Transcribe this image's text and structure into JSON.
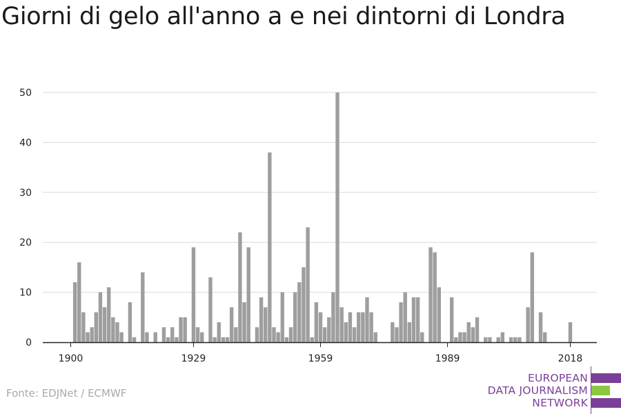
{
  "title": "Giorni di gelo all'anno a e nei dintorni di Londra",
  "source": "Fonte: EDJNet / ECMWF",
  "logo": {
    "lines": [
      "EUROPEAN",
      "DATA JOURNALISM",
      "NETWORK"
    ],
    "colors": [
      "#7b3f98",
      "#8dc63f",
      "#7b3f98"
    ]
  },
  "colors": {
    "bar": "#9e9e9e",
    "grid": "#d9d9d9",
    "axis": "#222222",
    "tick_text": "#222222"
  },
  "chart_data": {
    "type": "bar",
    "title": "Giorni di gelo all'anno a e nei dintorni di Londra",
    "xlabel": "",
    "ylabel": "",
    "ylim": [
      0,
      50
    ],
    "yticks": [
      0,
      10,
      20,
      30,
      40,
      50
    ],
    "xticks": [
      1900,
      1929,
      1959,
      1989,
      2018
    ],
    "xrange": [
      1900,
      2018
    ],
    "grid": true,
    "x": [
      1900,
      1901,
      1902,
      1903,
      1904,
      1905,
      1906,
      1907,
      1908,
      1909,
      1910,
      1911,
      1912,
      1913,
      1914,
      1915,
      1916,
      1917,
      1918,
      1919,
      1920,
      1921,
      1922,
      1923,
      1924,
      1925,
      1926,
      1927,
      1928,
      1929,
      1930,
      1931,
      1932,
      1933,
      1934,
      1935,
      1936,
      1937,
      1938,
      1939,
      1940,
      1941,
      1942,
      1943,
      1944,
      1945,
      1946,
      1947,
      1948,
      1949,
      1950,
      1951,
      1952,
      1953,
      1954,
      1955,
      1956,
      1957,
      1958,
      1959,
      1960,
      1961,
      1962,
      1963,
      1964,
      1965,
      1966,
      1967,
      1968,
      1969,
      1970,
      1971,
      1972,
      1973,
      1974,
      1975,
      1976,
      1977,
      1978,
      1979,
      1980,
      1981,
      1982,
      1983,
      1984,
      1985,
      1986,
      1987,
      1988,
      1989,
      1990,
      1991,
      1992,
      1993,
      1994,
      1995,
      1996,
      1997,
      1998,
      1999,
      2000,
      2001,
      2002,
      2003,
      2004,
      2005,
      2006,
      2007,
      2008,
      2009,
      2010,
      2011,
      2012,
      2013,
      2014,
      2015,
      2016,
      2017,
      2018
    ],
    "values": [
      0,
      12,
      16,
      6,
      2,
      3,
      6,
      10,
      7,
      11,
      5,
      4,
      2,
      0,
      8,
      1,
      0,
      14,
      2,
      0,
      2,
      0,
      3,
      1,
      3,
      1,
      5,
      5,
      0,
      19,
      3,
      2,
      0,
      13,
      1,
      4,
      1,
      1,
      7,
      3,
      22,
      8,
      19,
      0,
      3,
      9,
      7,
      38,
      3,
      2,
      10,
      1,
      3,
      10,
      12,
      15,
      23,
      1,
      8,
      6,
      3,
      5,
      10,
      50,
      7,
      4,
      6,
      3,
      6,
      6,
      9,
      6,
      2,
      0,
      0,
      0,
      4,
      3,
      8,
      10,
      4,
      9,
      9,
      2,
      0,
      19,
      18,
      11,
      0,
      0,
      9,
      1,
      2,
      2,
      4,
      3,
      5,
      0,
      1,
      1,
      0,
      1,
      2,
      0,
      1,
      1,
      1,
      0,
      7,
      18,
      0,
      6,
      2,
      0,
      0,
      0,
      0,
      0,
      4
    ]
  }
}
